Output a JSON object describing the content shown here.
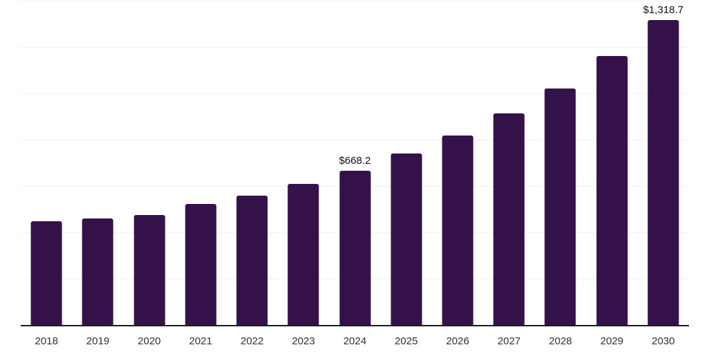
{
  "chart_data": {
    "type": "bar",
    "title": "",
    "xlabel": "",
    "ylabel": "",
    "categories": [
      "2018",
      "2019",
      "2020",
      "2021",
      "2022",
      "2023",
      "2024",
      "2025",
      "2026",
      "2027",
      "2028",
      "2029",
      "2030"
    ],
    "values": [
      452.0,
      464.0,
      476.5,
      525.0,
      561.0,
      611.5,
      668.2,
      743.0,
      820.0,
      915.0,
      1025.0,
      1163.0,
      1318.7
    ],
    "data_labels": {
      "2024": "$668.2",
      "2030": "$1,318.7"
    },
    "ylim": [
      0,
      1400
    ],
    "grid_step": 200,
    "grid": true,
    "legend": false,
    "y_axis_labels_visible": false,
    "bar_color": "#35114a",
    "axis_color": "#1a1a1a",
    "gridline_color": "#f2f2f2",
    "label_color": "#111111",
    "tick_color": "#333333"
  }
}
